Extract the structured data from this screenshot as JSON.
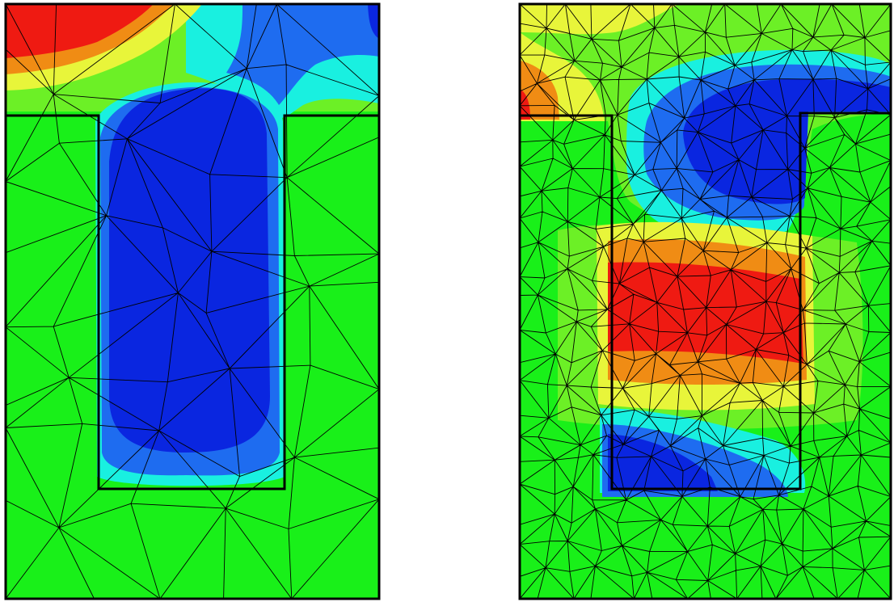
{
  "figure": {
    "panels": [
      {
        "id": "left",
        "field": "smooth",
        "mesh": "coarse"
      },
      {
        "id": "right",
        "field": "oscillating",
        "mesh": "fine"
      }
    ],
    "palette": {
      "background_field": "#19f019",
      "dark_blue": "#0a26e0",
      "mid_blue": "#1e6cf0",
      "cyan": "#19f0e0",
      "light_green": "#6cf026",
      "yellow": "#e8f53a",
      "orange": "#f08c14",
      "red": "#ef1a12",
      "mesh_line": "#000000"
    }
  }
}
